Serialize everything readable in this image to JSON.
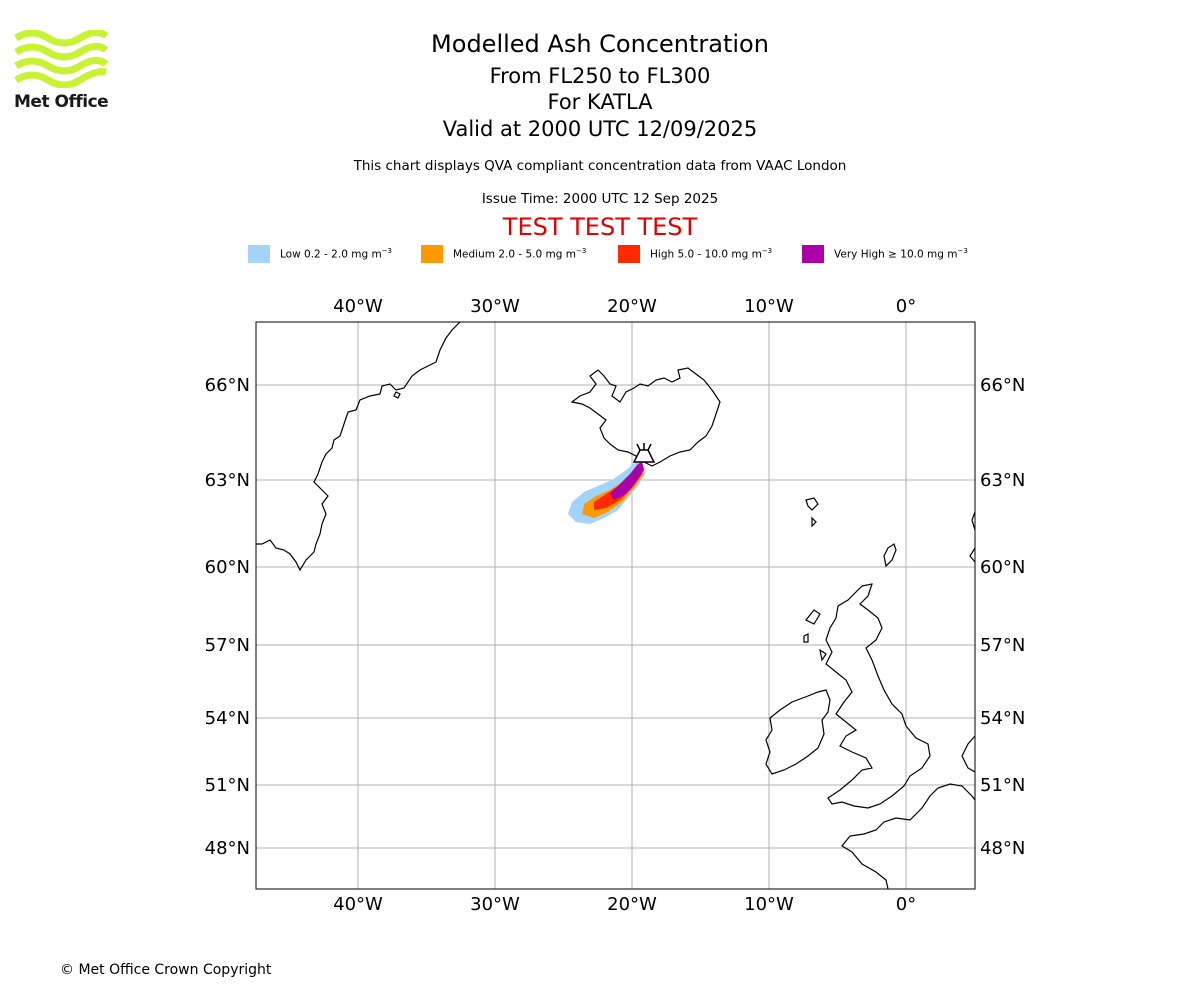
{
  "logo": {
    "text": "Met Office"
  },
  "title": {
    "line1": "Modelled Ash Concentration",
    "line2": "From FL250 to FL300",
    "line3": "For KATLA",
    "line4": "Valid at 2000 UTC 12/09/2025"
  },
  "subtitle": {
    "description": "This chart displays QVA compliant concentration data from VAAC London",
    "issue_time": "Issue Time: 2000 UTC 12 Sep 2025",
    "test_banner": "TEST TEST TEST"
  },
  "legend": [
    {
      "label": "Low 0.2 - 2.0 mg m",
      "exp": "−3",
      "color": "#a2d4fa"
    },
    {
      "label": "Medium 2.0 - 5.0 mg m",
      "exp": "−3",
      "color": "#ff9900"
    },
    {
      "label": "High 5.0 - 10.0 mg m",
      "exp": "−3",
      "color": "#ff2a00"
    },
    {
      "label": "Very High ≥ 10.0 mg m",
      "exp": "−3",
      "color": "#aa00aa"
    }
  ],
  "map": {
    "lon_labels": [
      "40°W",
      "30°W",
      "20°W",
      "10°W",
      "0°"
    ],
    "lat_labels": [
      "66°N",
      "63°N",
      "60°N",
      "57°N",
      "54°N",
      "51°N",
      "48°N"
    ],
    "volcano": "KATLA",
    "grid": true
  },
  "footer": {
    "copyright": "© Met Office Crown Copyright"
  }
}
